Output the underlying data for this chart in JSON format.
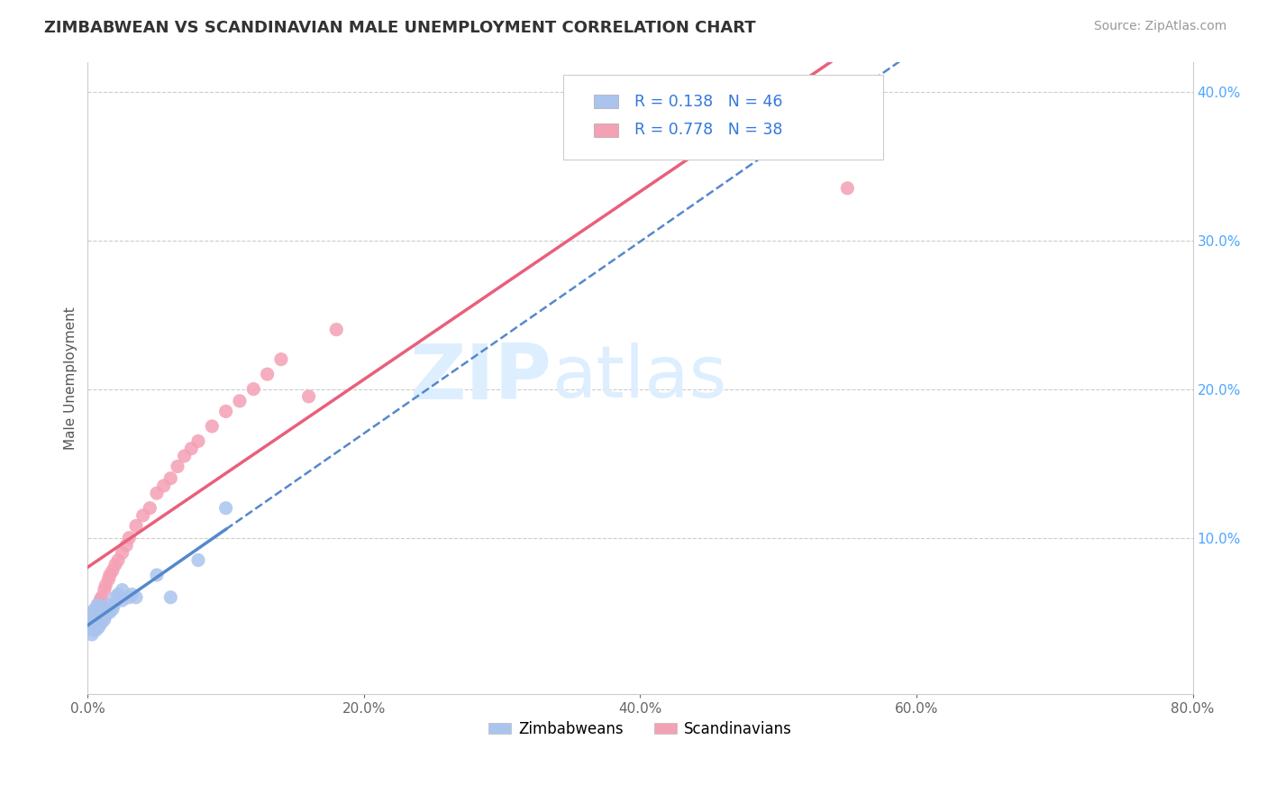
{
  "title": "ZIMBABWEAN VS SCANDINAVIAN MALE UNEMPLOYMENT CORRELATION CHART",
  "source": "Source: ZipAtlas.com",
  "ylabel": "Male Unemployment",
  "xlim": [
    0.0,
    0.8
  ],
  "ylim": [
    -0.005,
    0.42
  ],
  "xtick_labels": [
    "0.0%",
    "20.0%",
    "40.0%",
    "60.0%",
    "80.0%"
  ],
  "xtick_values": [
    0.0,
    0.2,
    0.4,
    0.6,
    0.8
  ],
  "right_ytick_labels": [
    "10.0%",
    "20.0%",
    "30.0%",
    "40.0%"
  ],
  "right_ytick_values": [
    0.1,
    0.2,
    0.3,
    0.4
  ],
  "zimbabwean_color": "#aac4ee",
  "scandinavian_color": "#f4a0b5",
  "zimbabwean_line_color": "#5588cc",
  "scandinavian_line_color": "#e8607a",
  "zimbabwean_R": 0.138,
  "zimbabwean_N": 46,
  "scandinavian_R": 0.778,
  "scandinavian_N": 38,
  "background_color": "#ffffff",
  "grid_color": "#cccccc",
  "watermark_zip": "ZIP",
  "watermark_atlas": "atlas",
  "watermark_color": "#ddeeff",
  "legend_label_blue": "Zimbabweans",
  "legend_label_pink": "Scandinavians",
  "zimbabwean_x": [
    0.003,
    0.003,
    0.004,
    0.004,
    0.004,
    0.005,
    0.005,
    0.005,
    0.005,
    0.006,
    0.006,
    0.006,
    0.006,
    0.007,
    0.007,
    0.007,
    0.007,
    0.007,
    0.008,
    0.008,
    0.008,
    0.009,
    0.009,
    0.009,
    0.01,
    0.01,
    0.01,
    0.012,
    0.012,
    0.013,
    0.014,
    0.015,
    0.016,
    0.018,
    0.019,
    0.02,
    0.022,
    0.025,
    0.025,
    0.03,
    0.032,
    0.035,
    0.05,
    0.06,
    0.08,
    0.1
  ],
  "zimbabwean_y": [
    0.05,
    0.035,
    0.04,
    0.045,
    0.038,
    0.042,
    0.044,
    0.048,
    0.052,
    0.038,
    0.042,
    0.046,
    0.05,
    0.04,
    0.043,
    0.046,
    0.05,
    0.055,
    0.04,
    0.045,
    0.05,
    0.042,
    0.047,
    0.052,
    0.043,
    0.048,
    0.053,
    0.045,
    0.05,
    0.048,
    0.052,
    0.055,
    0.05,
    0.052,
    0.055,
    0.06,
    0.062,
    0.058,
    0.065,
    0.06,
    0.062,
    0.06,
    0.075,
    0.06,
    0.085,
    0.12
  ],
  "scandinavian_x": [
    0.003,
    0.004,
    0.005,
    0.006,
    0.007,
    0.008,
    0.008,
    0.009,
    0.01,
    0.012,
    0.013,
    0.015,
    0.016,
    0.018,
    0.02,
    0.022,
    0.025,
    0.028,
    0.03,
    0.035,
    0.04,
    0.045,
    0.05,
    0.055,
    0.06,
    0.065,
    0.07,
    0.075,
    0.08,
    0.09,
    0.1,
    0.11,
    0.12,
    0.13,
    0.14,
    0.16,
    0.18,
    0.55
  ],
  "scandinavian_y": [
    0.04,
    0.038,
    0.042,
    0.045,
    0.048,
    0.05,
    0.055,
    0.058,
    0.06,
    0.065,
    0.068,
    0.072,
    0.075,
    0.078,
    0.082,
    0.085,
    0.09,
    0.095,
    0.1,
    0.108,
    0.115,
    0.12,
    0.13,
    0.135,
    0.14,
    0.148,
    0.155,
    0.16,
    0.165,
    0.175,
    0.185,
    0.192,
    0.2,
    0.21,
    0.22,
    0.195,
    0.24,
    0.335
  ]
}
